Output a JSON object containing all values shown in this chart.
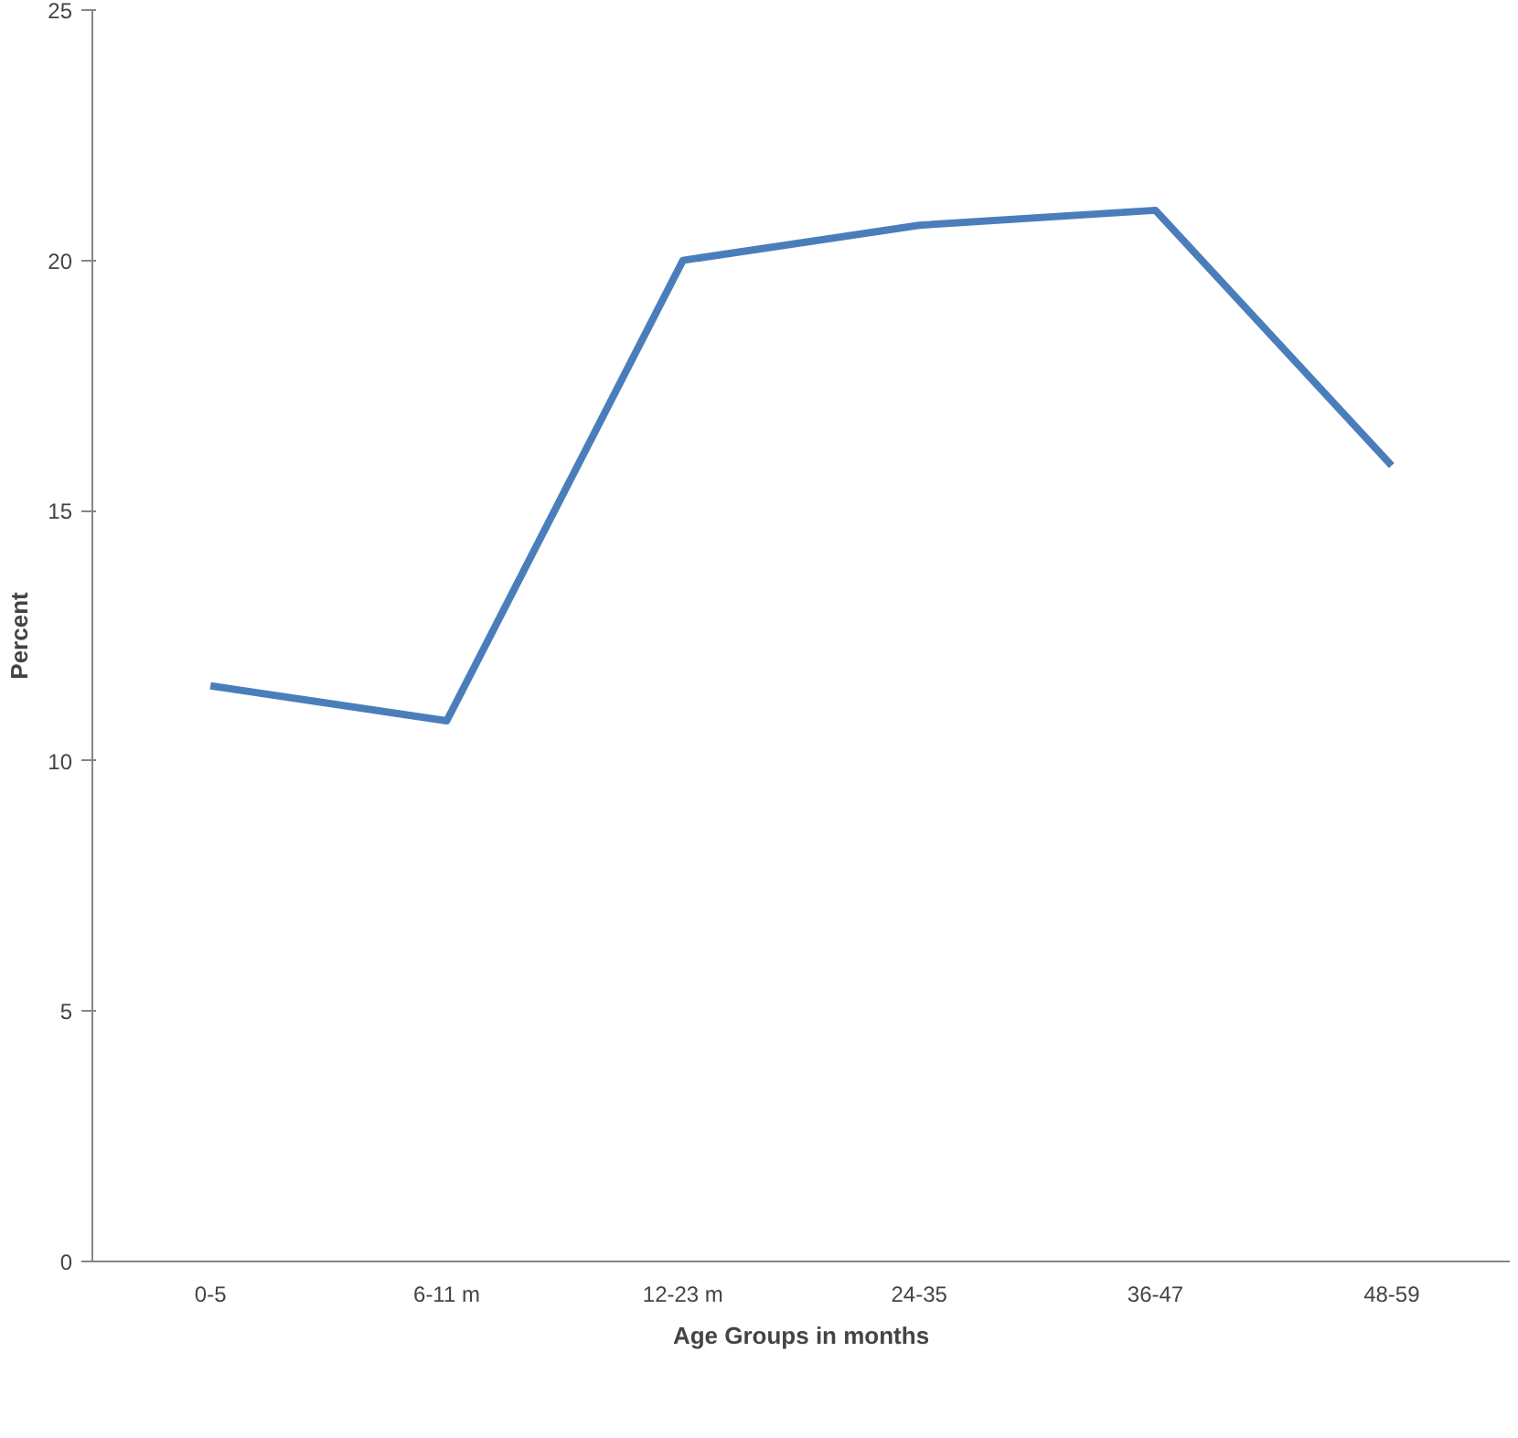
{
  "chart_data": {
    "type": "line",
    "xlabel": "Age Groups in months",
    "ylabel": "Percent",
    "categories": [
      "0-5",
      "6-11 m",
      "12-23 m",
      "24-35",
      "36-47",
      "48-59"
    ],
    "series": [
      {
        "color": "#4a7ebb",
        "values": [
          11.5,
          10.8,
          20.0,
          20.7,
          21.0,
          15.9
        ]
      }
    ],
    "ylim": [
      0,
      25
    ],
    "yticks": [
      0,
      5,
      10,
      15,
      20,
      25
    ],
    "grid": false,
    "marker": "none",
    "line_style": "solid"
  }
}
